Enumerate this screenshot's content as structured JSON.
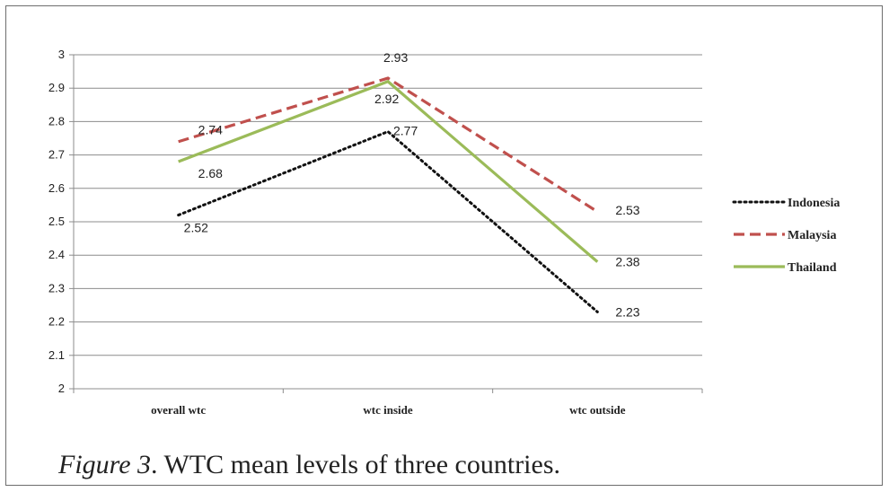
{
  "caption": {
    "figure_label": "Figure 3",
    "text": ". WTC mean levels of three countries."
  },
  "chart_data": {
    "type": "line",
    "title": "",
    "xlabel": "",
    "ylabel": "",
    "categories": [
      "overall wtc",
      "wtc inside",
      "wtc outside"
    ],
    "ylim": [
      2,
      3
    ],
    "yticks": [
      "2",
      "2.1",
      "2.2",
      "2.3",
      "2.4",
      "2.5",
      "2.6",
      "2.7",
      "2.8",
      "2.9",
      "3"
    ],
    "grid": true,
    "legend_position": "right",
    "series": [
      {
        "name": "Indonesia",
        "values": [
          2.52,
          2.77,
          2.23
        ],
        "color": "#111111",
        "style": "dotted",
        "labels": [
          "2.52",
          "2.77",
          "2.23"
        ]
      },
      {
        "name": "Malaysia",
        "values": [
          2.74,
          2.93,
          2.53
        ],
        "color": "#c0504d",
        "style": "dashed",
        "labels": [
          "2.74",
          "2.93",
          "2.53"
        ]
      },
      {
        "name": "Thailand",
        "values": [
          2.68,
          2.92,
          2.38
        ],
        "color": "#9bbb59",
        "style": "solid",
        "labels": [
          "2.68",
          "2.92",
          "2.38"
        ]
      }
    ]
  }
}
